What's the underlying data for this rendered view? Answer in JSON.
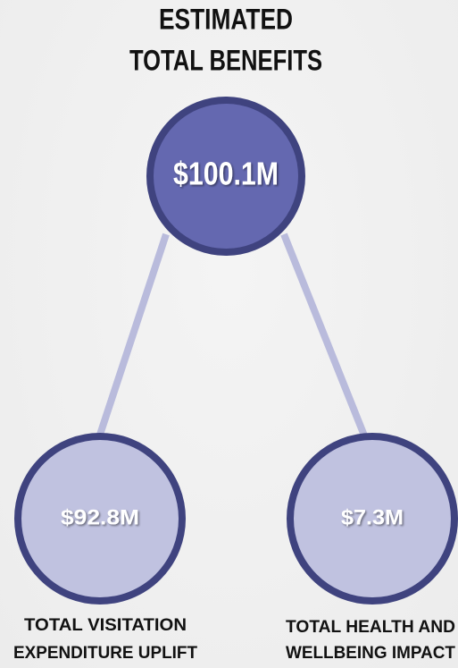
{
  "title": [
    "ESTIMATED",
    "TOTAL BENEFITS"
  ],
  "nodes": [
    {
      "value": "$100.1M"
    },
    {
      "value": "$92.8M",
      "label": [
        "TOTAL VISITATION",
        "EXPENDITURE UPLIFT"
      ]
    },
    {
      "value": "$7.3M",
      "label": [
        "TOTAL HEALTH AND",
        "WELLBEING IMPACT"
      ]
    }
  ]
}
